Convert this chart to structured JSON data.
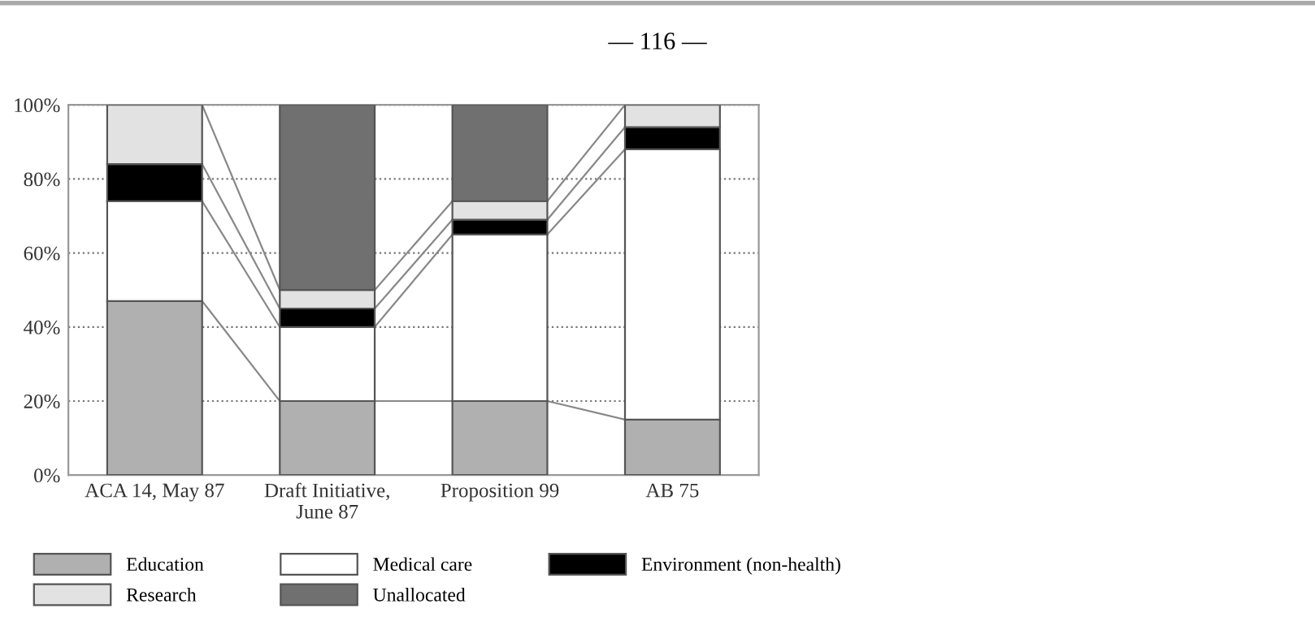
{
  "chart_data": {
    "type": "bar",
    "stacked": true,
    "categories": [
      "ACA 14, May 87",
      "Draft Initiative,\nJune 87",
      "Proposition 99",
      "AB 75"
    ],
    "series": [
      {
        "name": "Education",
        "color": "#b0b0b0",
        "values": [
          47,
          20,
          20,
          15
        ]
      },
      {
        "name": "Medical care",
        "color": "#ffffff",
        "values": [
          27,
          20,
          45,
          73
        ]
      },
      {
        "name": "Environment (non-health)",
        "color": "#000000",
        "values": [
          10,
          5,
          4,
          6
        ]
      },
      {
        "name": "Research",
        "color": "#e2e2e2",
        "values": [
          16,
          5,
          5,
          6
        ]
      },
      {
        "name": "Unallocated",
        "color": "#707070",
        "values": [
          0,
          50,
          26,
          0
        ]
      }
    ],
    "ylim": [
      0,
      100
    ],
    "yticks": [
      {
        "value": 0,
        "label": "0%"
      },
      {
        "value": 20,
        "label": "20%"
      },
      {
        "value": 40,
        "label": "40%"
      },
      {
        "value": 60,
        "label": "60%"
      },
      {
        "value": 80,
        "label": "80%"
      },
      {
        "value": 100,
        "label": "100%"
      }
    ],
    "grid": "y",
    "legend": "bottom",
    "annotations": [
      "— 116 —"
    ]
  }
}
